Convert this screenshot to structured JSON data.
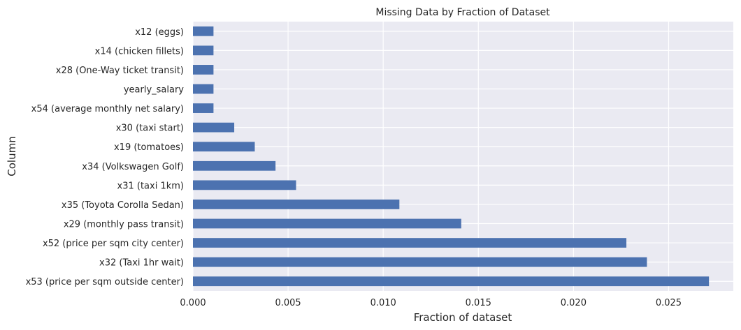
{
  "chart_data": {
    "type": "bar",
    "orientation": "horizontal",
    "title": "Missing Data by Fraction of Dataset",
    "xlabel": "Fraction of dataset",
    "ylabel": "Column",
    "xlim": [
      0,
      0.0284
    ],
    "xticks": [
      0.0,
      0.005,
      0.01,
      0.015,
      0.02,
      0.025
    ],
    "xtick_labels": [
      "0.000",
      "0.005",
      "0.010",
      "0.015",
      "0.020",
      "0.025"
    ],
    "grid": true,
    "bar_color": "#4c72b0",
    "background_color": "#eaeaf2",
    "categories": [
      "x12 (eggs)",
      "x14 (chicken fillets)",
      "x28 (One-Way ticket transit)",
      "yearly_salary",
      "x54 (average monthly net salary)",
      "x30 (taxi start)",
      "x19 (tomatoes)",
      "x34 (Volkswagen Golf)",
      "x31 (taxi 1km)",
      "x35 (Toyota Corolla Sedan)",
      "x29 (monthly pass transit)",
      "x52 (price per sqm city center)",
      "x32 (Taxi 1hr wait)",
      "x53 (price per sqm outside center)"
    ],
    "values": [
      0.00108,
      0.00108,
      0.00108,
      0.00108,
      0.00108,
      0.00217,
      0.00325,
      0.00434,
      0.00542,
      0.01085,
      0.0141,
      0.02278,
      0.02386,
      0.02712
    ]
  }
}
